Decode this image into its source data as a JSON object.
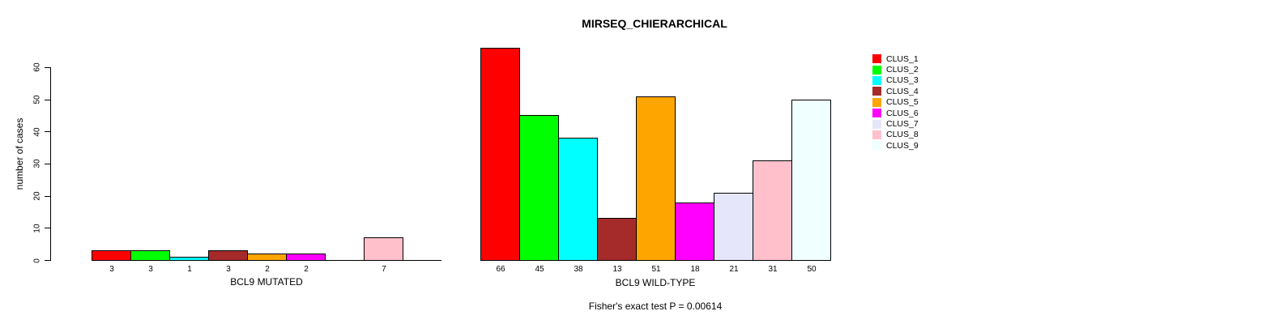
{
  "title": "MIRSEQ_CHIERARCHICAL",
  "footer": "Fisher's exact test P = 0.00614",
  "chart_data": {
    "type": "bar",
    "title": "MIRSEQ_CHIERARCHICAL",
    "ylabel": "number of cases",
    "ylim": [
      0,
      60
    ],
    "yticks": [
      0,
      10,
      20,
      30,
      40,
      50,
      60
    ],
    "grid": false,
    "legend_position": "right",
    "categories": [
      "CLUS_1",
      "CLUS_2",
      "CLUS_3",
      "CLUS_4",
      "CLUS_5",
      "CLUS_6",
      "CLUS_7",
      "CLUS_8",
      "CLUS_9"
    ],
    "cluster_colors": [
      "#FF0000",
      "#00FF00",
      "#00FFFF",
      "#A52A2A",
      "#FFA500",
      "#FF00FF",
      "#E6E6FA",
      "#FFC0CB",
      "#F0FFFF"
    ],
    "panels": [
      {
        "xlabel": "BCL9 MUTATED",
        "values": [
          3,
          3,
          1,
          3,
          2,
          2,
          0,
          7,
          0
        ]
      },
      {
        "xlabel": "BCL9 WILD-TYPE",
        "values": [
          66,
          45,
          38,
          13,
          51,
          18,
          21,
          31,
          50
        ]
      }
    ],
    "annotation": "Fisher's exact test P = 0.00614"
  },
  "legend": {
    "items": [
      {
        "label": "CLUS_1",
        "color": "#FF0000"
      },
      {
        "label": "CLUS_2",
        "color": "#00FF00"
      },
      {
        "label": "CLUS_3",
        "color": "#00FFFF"
      },
      {
        "label": "CLUS_4",
        "color": "#A52A2A"
      },
      {
        "label": "CLUS_5",
        "color": "#FFA500"
      },
      {
        "label": "CLUS_6",
        "color": "#FF00FF"
      },
      {
        "label": "CLUS_7",
        "color": "#E6E6FA"
      },
      {
        "label": "CLUS_8",
        "color": "#FFC0CB"
      },
      {
        "label": "CLUS_9",
        "color": "#F0FFFF"
      }
    ]
  }
}
